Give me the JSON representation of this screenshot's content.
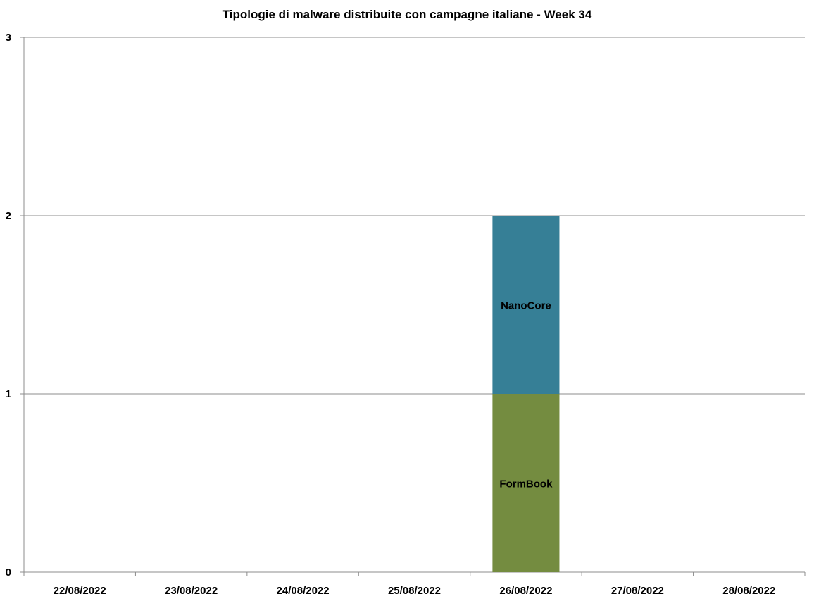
{
  "chart_data": {
    "type": "bar",
    "stacked": true,
    "title": "Tipologie di malware distribuite con campagne italiane - Week 34",
    "categories": [
      "22/08/2022",
      "23/08/2022",
      "24/08/2022",
      "25/08/2022",
      "26/08/2022",
      "27/08/2022",
      "28/08/2022"
    ],
    "series": [
      {
        "name": "FormBook",
        "color": "#748c40",
        "values": [
          0,
          0,
          0,
          0,
          1,
          0,
          0
        ]
      },
      {
        "name": "NanoCore",
        "color": "#367f96",
        "values": [
          0,
          0,
          0,
          0,
          1,
          0,
          0
        ]
      }
    ],
    "ylim": [
      0,
      3
    ],
    "yticks": [
      0,
      1,
      2,
      3
    ],
    "grid": true,
    "legend": "none"
  }
}
